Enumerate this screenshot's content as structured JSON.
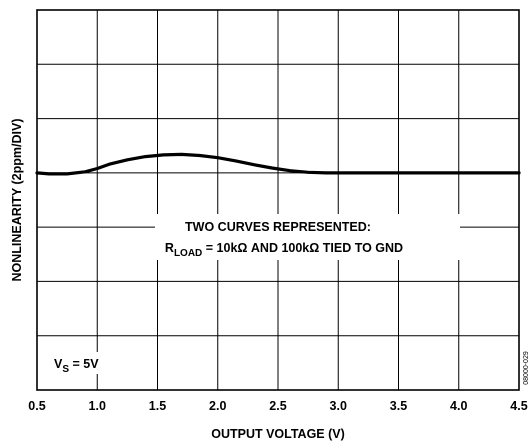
{
  "chart_data": {
    "type": "line",
    "title": "",
    "xlabel": "OUTPUT VOLTAGE (V)",
    "ylabel": "NONLINEARITY (2ppm/DIV)",
    "xlim": [
      0.5,
      4.5
    ],
    "x_ticks": [
      "0.5",
      "1.0",
      "1.5",
      "2.0",
      "2.5",
      "3.0",
      "3.5",
      "4.0",
      "4.5"
    ],
    "ylim": [
      -4,
      3
    ],
    "y_tick_labels": [],
    "grid": true,
    "y_unit_per_division": "2ppm",
    "series": [
      {
        "x": [
          0.5,
          0.6,
          0.75,
          0.9,
          1.0,
          1.1,
          1.25,
          1.4,
          1.55,
          1.7,
          1.85,
          2.0,
          2.15,
          2.3,
          2.45,
          2.6,
          2.75,
          2.9,
          3.0,
          3.25,
          3.5,
          3.75,
          4.0,
          4.25,
          4.5
        ],
        "y": [
          0.0,
          -0.02,
          -0.02,
          0.02,
          0.08,
          0.16,
          0.24,
          0.3,
          0.33,
          0.34,
          0.32,
          0.28,
          0.22,
          0.15,
          0.09,
          0.04,
          0.01,
          0.0,
          0.0,
          0.0,
          0.0,
          0.0,
          0.0,
          0.0,
          0.0
        ]
      }
    ],
    "annotations": {
      "line1": "TWO CURVES REPRESENTED:",
      "line2_prefix": "R",
      "line2_sub": "LOAD",
      "line2_rest": " = 10kΩ AND 100kΩ TIED TO GND",
      "vs_main": "V",
      "vs_sub": "S",
      "vs_rest": " = 5V"
    },
    "figure_id": "08000-029"
  }
}
